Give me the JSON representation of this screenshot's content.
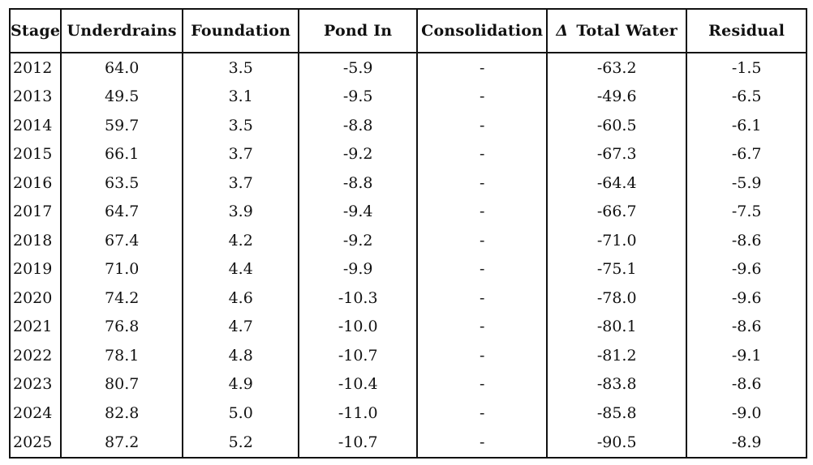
{
  "table": {
    "headers": {
      "stage": "Stage",
      "underdrains": "Underdrains",
      "foundation": "Foundation",
      "pond_in": "Pond In",
      "consolidation": "Consolidation",
      "total_water_symbol": "Δ",
      "total_water": "Total Water",
      "residual": "Residual"
    },
    "rows": [
      {
        "stage": "2012",
        "underdrains": "64.0",
        "foundation": "3.5",
        "pond_in": "-5.9",
        "consolidation": "-",
        "total_water": "-63.2",
        "residual": "-1.5"
      },
      {
        "stage": "2013",
        "underdrains": "49.5",
        "foundation": "3.1",
        "pond_in": "-9.5",
        "consolidation": "-",
        "total_water": "-49.6",
        "residual": "-6.5"
      },
      {
        "stage": "2014",
        "underdrains": "59.7",
        "foundation": "3.5",
        "pond_in": "-8.8",
        "consolidation": "-",
        "total_water": "-60.5",
        "residual": "-6.1"
      },
      {
        "stage": "2015",
        "underdrains": "66.1",
        "foundation": "3.7",
        "pond_in": "-9.2",
        "consolidation": "-",
        "total_water": "-67.3",
        "residual": "-6.7"
      },
      {
        "stage": "2016",
        "underdrains": "63.5",
        "foundation": "3.7",
        "pond_in": "-8.8",
        "consolidation": "-",
        "total_water": "-64.4",
        "residual": "-5.9"
      },
      {
        "stage": "2017",
        "underdrains": "64.7",
        "foundation": "3.9",
        "pond_in": "-9.4",
        "consolidation": "-",
        "total_water": "-66.7",
        "residual": "-7.5"
      },
      {
        "stage": "2018",
        "underdrains": "67.4",
        "foundation": "4.2",
        "pond_in": "-9.2",
        "consolidation": "-",
        "total_water": "-71.0",
        "residual": "-8.6"
      },
      {
        "stage": "2019",
        "underdrains": "71.0",
        "foundation": "4.4",
        "pond_in": "-9.9",
        "consolidation": "-",
        "total_water": "-75.1",
        "residual": "-9.6"
      },
      {
        "stage": "2020",
        "underdrains": "74.2",
        "foundation": "4.6",
        "pond_in": "-10.3",
        "consolidation": "-",
        "total_water": "-78.0",
        "residual": "-9.6"
      },
      {
        "stage": "2021",
        "underdrains": "76.8",
        "foundation": "4.7",
        "pond_in": "-10.0",
        "consolidation": "-",
        "total_water": "-80.1",
        "residual": "-8.6"
      },
      {
        "stage": "2022",
        "underdrains": "78.1",
        "foundation": "4.8",
        "pond_in": "-10.7",
        "consolidation": "-",
        "total_water": "-81.2",
        "residual": "-9.1"
      },
      {
        "stage": "2023",
        "underdrains": "80.7",
        "foundation": "4.9",
        "pond_in": "-10.4",
        "consolidation": "-",
        "total_water": "-83.8",
        "residual": "-8.6"
      },
      {
        "stage": "2024",
        "underdrains": "82.8",
        "foundation": "5.0",
        "pond_in": "-11.0",
        "consolidation": "-",
        "total_water": "-85.8",
        "residual": "-9.0"
      },
      {
        "stage": "2025",
        "underdrains": "87.2",
        "foundation": "5.2",
        "pond_in": "-10.7",
        "consolidation": "-",
        "total_water": "-90.5",
        "residual": "-8.9"
      }
    ]
  }
}
